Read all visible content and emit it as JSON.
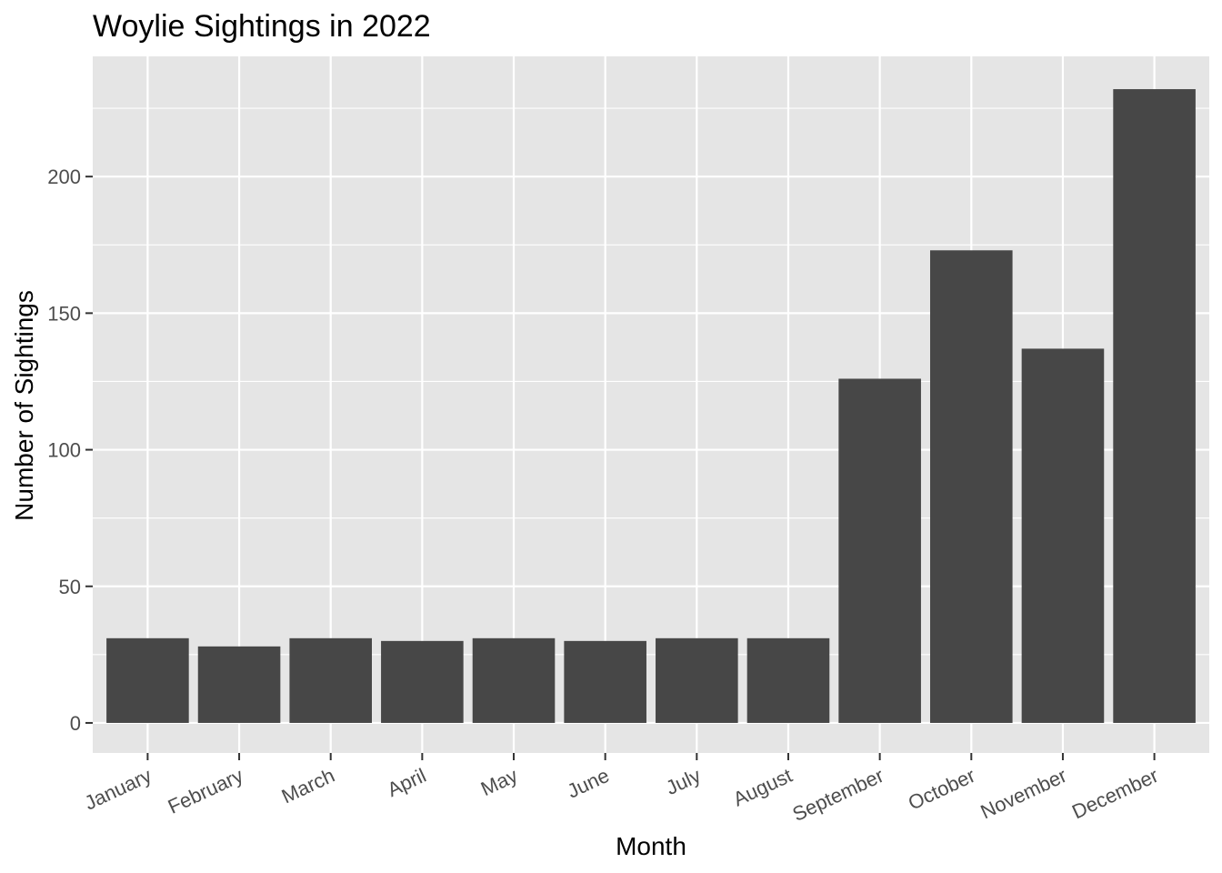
{
  "chart_data": {
    "type": "bar",
    "title": "Woylie Sightings in 2022",
    "xlabel": "Month",
    "ylabel": "Number of Sightings",
    "categories": [
      "January",
      "February",
      "March",
      "April",
      "May",
      "June",
      "July",
      "August",
      "September",
      "October",
      "November",
      "December"
    ],
    "values": [
      31,
      28,
      31,
      30,
      31,
      30,
      31,
      31,
      126,
      173,
      137,
      232
    ],
    "ylim": [
      -11,
      244
    ],
    "yticks": [
      0,
      50,
      100,
      150,
      200
    ],
    "y_minor_ticks": [
      25,
      75,
      125,
      175,
      225
    ],
    "grid": true,
    "legend": "none",
    "x_tick_rotation_degrees": 25
  },
  "colors": {
    "panel_background": "#e5e5e5",
    "grid_line": "#ffffff",
    "bar_fill": "#474747",
    "tick_label": "#4d4d4d",
    "tick_mark": "#333333",
    "title_text": "#000000"
  }
}
